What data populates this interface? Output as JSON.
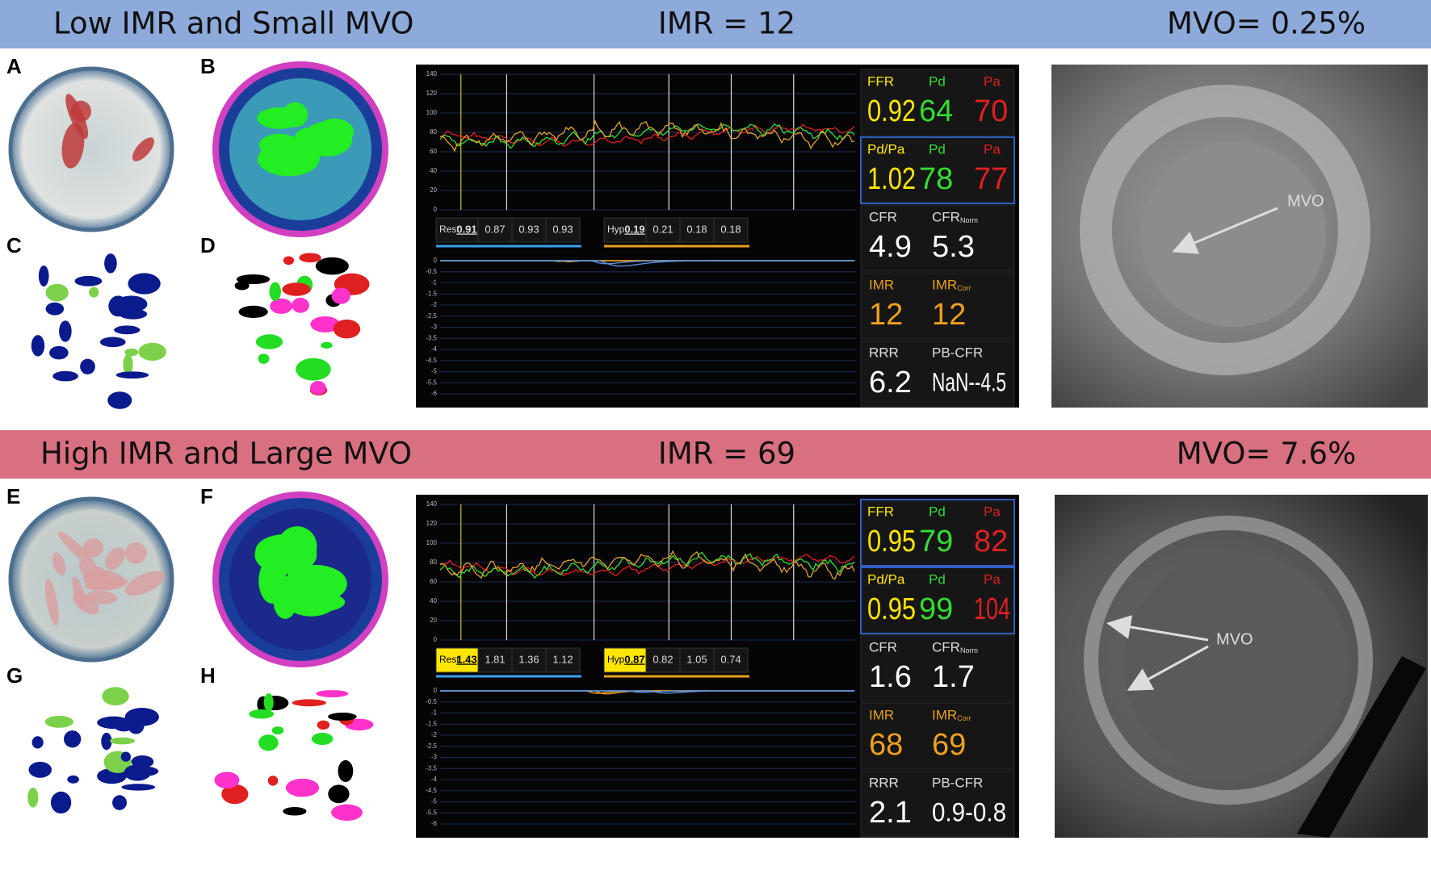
{
  "rows": [
    {
      "banner": {
        "title": "Low IMR and Small MVO",
        "imr": "IMR = 12",
        "mvo": "MVO= 0.25%"
      },
      "letters": [
        "A",
        "B",
        "C",
        "D"
      ],
      "monitor": {
        "pressure_ticks": [
          "140",
          "120",
          "100",
          "80",
          "60",
          "40",
          "20",
          "0"
        ],
        "rest_label": "Rest",
        "rest_values": [
          "0.91",
          "0.87",
          "0.93",
          "0.93"
        ],
        "hyp_label": "Hyp",
        "hyp_values": [
          "0.19",
          "0.21",
          "0.18",
          "0.18"
        ],
        "thermo_ticks": [
          "0",
          "-0.5",
          "-1",
          "-1.5",
          "-2",
          "-2.5",
          "-3",
          "-3.5",
          "-4",
          "-4.5",
          "-5",
          "-5.5",
          "-6"
        ],
        "readouts": [
          {
            "labels": [
              {
                "text": "FFR"
              },
              {
                "text": "Pd"
              },
              {
                "text": "Pa"
              }
            ],
            "values": [
              "0.92",
              "64",
              "70"
            ]
          },
          {
            "labels": [
              {
                "text": "Pd/Pa"
              },
              {
                "text": "Pd"
              },
              {
                "text": "Pa"
              }
            ],
            "values": [
              "1.02",
              "78",
              "77"
            ]
          },
          {
            "labels": [
              {
                "text": "CFR"
              },
              {
                "text": "CFR",
                "sub": "Norm"
              }
            ],
            "values": [
              "4.9",
              "5.3"
            ]
          },
          {
            "labels": [
              {
                "text": "IMR"
              },
              {
                "text": "IMR",
                "sub": "Corr"
              }
            ],
            "values": [
              "12",
              "12"
            ]
          },
          {
            "labels": [
              {
                "text": "RRR"
              },
              {
                "text": "PB-CFR"
              }
            ],
            "values": [
              "6.2",
              "NaN--4.5"
            ]
          }
        ]
      },
      "mri_label": "MVO"
    },
    {
      "banner": {
        "title": "High IMR and Large MVO",
        "imr": "IMR = 69",
        "mvo": "MVO= 7.6%"
      },
      "letters": [
        "E",
        "F",
        "G",
        "H"
      ],
      "monitor": {
        "pressure_ticks": [
          "140",
          "120",
          "100",
          "80",
          "60",
          "40",
          "20",
          "0"
        ],
        "rest_label": "Rest",
        "rest_values": [
          "1.43",
          "1.81",
          "1.36",
          "1.12"
        ],
        "hyp_label": "Hyp",
        "hyp_values": [
          "0.87",
          "0.82",
          "1.05",
          "0.74"
        ],
        "thermo_ticks": [
          "0",
          "-0.5",
          "-1",
          "-1.5",
          "-2",
          "-2.5",
          "-3",
          "-3.5",
          "-4",
          "-4.5",
          "-5",
          "-5.5",
          "-6"
        ],
        "readouts": [
          {
            "labels": [
              {
                "text": "FFR"
              },
              {
                "text": "Pd"
              },
              {
                "text": "Pa"
              }
            ],
            "values": [
              "0.95",
              "79",
              "82"
            ]
          },
          {
            "labels": [
              {
                "text": "Pd/Pa"
              },
              {
                "text": "Pd"
              },
              {
                "text": "Pa"
              }
            ],
            "values": [
              "0.95",
              "99",
              "104"
            ]
          },
          {
            "labels": [
              {
                "text": "CFR"
              },
              {
                "text": "CFR",
                "sub": "Norm"
              }
            ],
            "values": [
              "1.6",
              "1.7"
            ]
          },
          {
            "labels": [
              {
                "text": "IMR"
              },
              {
                "text": "IMR",
                "sub": "Corr"
              }
            ],
            "values": [
              "68",
              "69"
            ]
          },
          {
            "labels": [
              {
                "text": "RRR"
              },
              {
                "text": "PB-CFR"
              }
            ],
            "values": [
              "2.1",
              "0.9-0.8"
            ]
          }
        ]
      },
      "mri_label": "MVO"
    }
  ]
}
